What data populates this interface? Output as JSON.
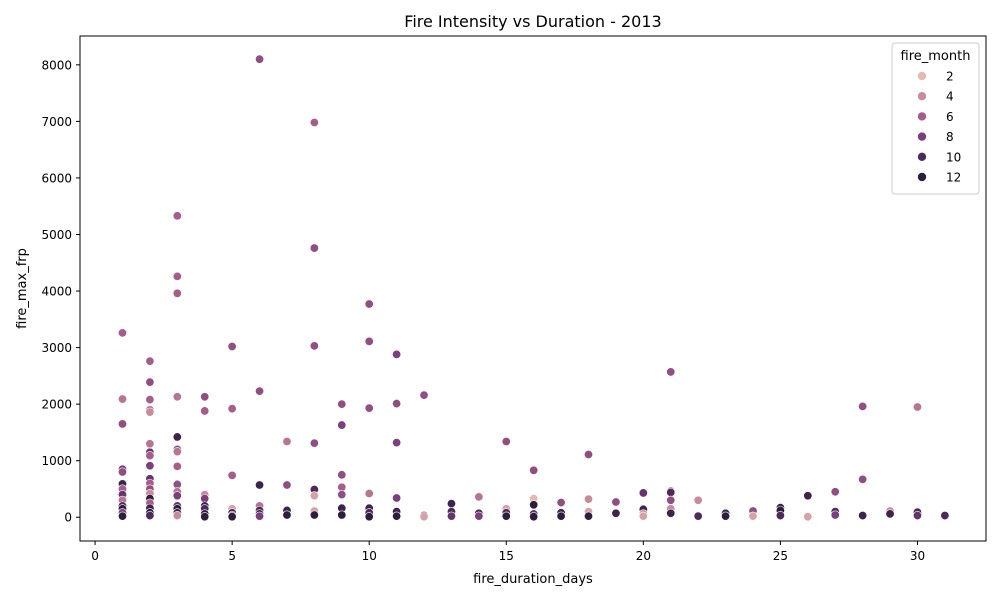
{
  "chart_data": {
    "type": "scatter",
    "title": "Fire Intensity vs Duration - 2013",
    "xlabel": "fire_duration_days",
    "ylabel": "fire_max_frp",
    "xlim": [
      -0.55,
      32.5
    ],
    "ylim": [
      -420,
      8510
    ],
    "xticks": [
      0,
      5,
      10,
      15,
      20,
      25,
      30
    ],
    "yticks": [
      0,
      1000,
      2000,
      3000,
      4000,
      5000,
      6000,
      7000,
      8000
    ],
    "grid": false,
    "legend": {
      "title": "fire_month",
      "placement": "top-right",
      "entries": [
        {
          "label": "2",
          "month": 2
        },
        {
          "label": "4",
          "month": 4
        },
        {
          "label": "6",
          "month": 6
        },
        {
          "label": "8",
          "month": 8
        },
        {
          "label": "10",
          "month": 10
        },
        {
          "label": "12",
          "month": 12
        }
      ]
    },
    "hue": {
      "field": "fire_month",
      "stops": [
        {
          "month": 1,
          "color": "#edd1cb"
        },
        {
          "month": 2,
          "color": "#e4b9b1"
        },
        {
          "month": 4,
          "color": "#c98b9c"
        },
        {
          "month": 6,
          "color": "#a55e8a"
        },
        {
          "month": 8,
          "color": "#7a3f7c"
        },
        {
          "month": 10,
          "color": "#4d2a5a"
        },
        {
          "month": 12,
          "color": "#2d1e3e"
        }
      ]
    },
    "points": [
      {
        "x": 1,
        "y": 3260,
        "m": 6
      },
      {
        "x": 1,
        "y": 2090,
        "m": 5
      },
      {
        "x": 1,
        "y": 1650,
        "m": 7
      },
      {
        "x": 1,
        "y": 850,
        "m": 8
      },
      {
        "x": 1,
        "y": 800,
        "m": 7
      },
      {
        "x": 1,
        "y": 590,
        "m": 11
      },
      {
        "x": 1,
        "y": 500,
        "m": 6
      },
      {
        "x": 1,
        "y": 400,
        "m": 9
      },
      {
        "x": 1,
        "y": 300,
        "m": 5
      },
      {
        "x": 1,
        "y": 200,
        "m": 10
      },
      {
        "x": 1,
        "y": 150,
        "m": 12
      },
      {
        "x": 1,
        "y": 80,
        "m": 8
      },
      {
        "x": 1,
        "y": 20,
        "m": 12
      },
      {
        "x": 2,
        "y": 2760,
        "m": 6
      },
      {
        "x": 2,
        "y": 2390,
        "m": 7
      },
      {
        "x": 2,
        "y": 2080,
        "m": 6
      },
      {
        "x": 2,
        "y": 1900,
        "m": 5
      },
      {
        "x": 2,
        "y": 1860,
        "m": 4
      },
      {
        "x": 2,
        "y": 1300,
        "m": 5
      },
      {
        "x": 2,
        "y": 1150,
        "m": 9
      },
      {
        "x": 2,
        "y": 1090,
        "m": 6
      },
      {
        "x": 2,
        "y": 910,
        "m": 8
      },
      {
        "x": 2,
        "y": 680,
        "m": 9
      },
      {
        "x": 2,
        "y": 600,
        "m": 6
      },
      {
        "x": 2,
        "y": 500,
        "m": 7
      },
      {
        "x": 2,
        "y": 420,
        "m": 4
      },
      {
        "x": 2,
        "y": 330,
        "m": 12
      },
      {
        "x": 2,
        "y": 250,
        "m": 6
      },
      {
        "x": 2,
        "y": 160,
        "m": 11
      },
      {
        "x": 2,
        "y": 80,
        "m": 12
      },
      {
        "x": 2,
        "y": 30,
        "m": 10
      },
      {
        "x": 3,
        "y": 5330,
        "m": 6
      },
      {
        "x": 3,
        "y": 4260,
        "m": 6
      },
      {
        "x": 3,
        "y": 3960,
        "m": 6
      },
      {
        "x": 3,
        "y": 2130,
        "m": 5
      },
      {
        "x": 3,
        "y": 1420,
        "m": 11
      },
      {
        "x": 3,
        "y": 1200,
        "m": 7
      },
      {
        "x": 3,
        "y": 1160,
        "m": 5
      },
      {
        "x": 3,
        "y": 900,
        "m": 6
      },
      {
        "x": 3,
        "y": 580,
        "m": 7
      },
      {
        "x": 3,
        "y": 450,
        "m": 5
      },
      {
        "x": 3,
        "y": 380,
        "m": 8
      },
      {
        "x": 3,
        "y": 200,
        "m": 9
      },
      {
        "x": 3,
        "y": 150,
        "m": 12
      },
      {
        "x": 3,
        "y": 80,
        "m": 11
      },
      {
        "x": 3,
        "y": 30,
        "m": 4
      },
      {
        "x": 4,
        "y": 2130,
        "m": 7
      },
      {
        "x": 4,
        "y": 1880,
        "m": 6
      },
      {
        "x": 4,
        "y": 400,
        "m": 4
      },
      {
        "x": 4,
        "y": 330,
        "m": 8
      },
      {
        "x": 4,
        "y": 200,
        "m": 11
      },
      {
        "x": 4,
        "y": 150,
        "m": 10
      },
      {
        "x": 4,
        "y": 60,
        "m": 12
      },
      {
        "x": 4,
        "y": 10,
        "m": 12
      },
      {
        "x": 5,
        "y": 3020,
        "m": 7
      },
      {
        "x": 5,
        "y": 1920,
        "m": 6
      },
      {
        "x": 5,
        "y": 740,
        "m": 6
      },
      {
        "x": 5,
        "y": 150,
        "m": 3
      },
      {
        "x": 5,
        "y": 80,
        "m": 10
      },
      {
        "x": 5,
        "y": 30,
        "m": 9
      },
      {
        "x": 5,
        "y": 10,
        "m": 12
      },
      {
        "x": 6,
        "y": 8100,
        "m": 7
      },
      {
        "x": 6,
        "y": 2230,
        "m": 7
      },
      {
        "x": 6,
        "y": 570,
        "m": 11
      },
      {
        "x": 6,
        "y": 200,
        "m": 5
      },
      {
        "x": 6,
        "y": 120,
        "m": 10
      },
      {
        "x": 6,
        "y": 60,
        "m": 12
      },
      {
        "x": 6,
        "y": 20,
        "m": 8
      },
      {
        "x": 7,
        "y": 1340,
        "m": 5
      },
      {
        "x": 7,
        "y": 570,
        "m": 7
      },
      {
        "x": 7,
        "y": 120,
        "m": 11
      },
      {
        "x": 7,
        "y": 40,
        "m": 12
      },
      {
        "x": 8,
        "y": 6980,
        "m": 6
      },
      {
        "x": 8,
        "y": 4760,
        "m": 7
      },
      {
        "x": 8,
        "y": 3030,
        "m": 7
      },
      {
        "x": 8,
        "y": 1310,
        "m": 7
      },
      {
        "x": 8,
        "y": 490,
        "m": 10
      },
      {
        "x": 8,
        "y": 380,
        "m": 3
      },
      {
        "x": 8,
        "y": 110,
        "m": 3
      },
      {
        "x": 8,
        "y": 40,
        "m": 12
      },
      {
        "x": 9,
        "y": 2000,
        "m": 7
      },
      {
        "x": 9,
        "y": 1630,
        "m": 8
      },
      {
        "x": 9,
        "y": 750,
        "m": 7
      },
      {
        "x": 9,
        "y": 530,
        "m": 6
      },
      {
        "x": 9,
        "y": 400,
        "m": 7
      },
      {
        "x": 9,
        "y": 160,
        "m": 11
      },
      {
        "x": 9,
        "y": 40,
        "m": 12
      },
      {
        "x": 10,
        "y": 3770,
        "m": 7
      },
      {
        "x": 10,
        "y": 3110,
        "m": 7
      },
      {
        "x": 10,
        "y": 1930,
        "m": 7
      },
      {
        "x": 10,
        "y": 420,
        "m": 5
      },
      {
        "x": 10,
        "y": 160,
        "m": 11
      },
      {
        "x": 10,
        "y": 80,
        "m": 10
      },
      {
        "x": 10,
        "y": 10,
        "m": 12
      },
      {
        "x": 11,
        "y": 2880,
        "m": 8
      },
      {
        "x": 11,
        "y": 2010,
        "m": 7
      },
      {
        "x": 11,
        "y": 1320,
        "m": 8
      },
      {
        "x": 11,
        "y": 340,
        "m": 8
      },
      {
        "x": 11,
        "y": 100,
        "m": 11
      },
      {
        "x": 11,
        "y": 20,
        "m": 12
      },
      {
        "x": 12,
        "y": 2160,
        "m": 7
      },
      {
        "x": 12,
        "y": 30,
        "m": 10
      },
      {
        "x": 12,
        "y": 10,
        "m": 3
      },
      {
        "x": 13,
        "y": 240,
        "m": 11
      },
      {
        "x": 13,
        "y": 100,
        "m": 10
      },
      {
        "x": 13,
        "y": 20,
        "m": 9
      },
      {
        "x": 14,
        "y": 360,
        "m": 5
      },
      {
        "x": 14,
        "y": 70,
        "m": 10
      },
      {
        "x": 14,
        "y": 20,
        "m": 8
      },
      {
        "x": 15,
        "y": 1340,
        "m": 7
      },
      {
        "x": 15,
        "y": 150,
        "m": 3
      },
      {
        "x": 15,
        "y": 80,
        "m": 10
      },
      {
        "x": 15,
        "y": 20,
        "m": 12
      },
      {
        "x": 16,
        "y": 830,
        "m": 7
      },
      {
        "x": 16,
        "y": 330,
        "m": 2
      },
      {
        "x": 16,
        "y": 220,
        "m": 12
      },
      {
        "x": 16,
        "y": 60,
        "m": 9
      },
      {
        "x": 16,
        "y": 10,
        "m": 12
      },
      {
        "x": 17,
        "y": 260,
        "m": 7
      },
      {
        "x": 17,
        "y": 80,
        "m": 11
      },
      {
        "x": 17,
        "y": 20,
        "m": 12
      },
      {
        "x": 18,
        "y": 1110,
        "m": 7
      },
      {
        "x": 18,
        "y": 320,
        "m": 4
      },
      {
        "x": 18,
        "y": 100,
        "m": 3
      },
      {
        "x": 18,
        "y": 20,
        "m": 12
      },
      {
        "x": 19,
        "y": 270,
        "m": 7
      },
      {
        "x": 19,
        "y": 70,
        "m": 11
      },
      {
        "x": 20,
        "y": 430,
        "m": 9
      },
      {
        "x": 20,
        "y": 140,
        "m": 11
      },
      {
        "x": 20,
        "y": 60,
        "m": 4
      },
      {
        "x": 20,
        "y": 20,
        "m": 3
      },
      {
        "x": 21,
        "y": 2570,
        "m": 7
      },
      {
        "x": 21,
        "y": 460,
        "m": 8
      },
      {
        "x": 21,
        "y": 440,
        "m": 10
      },
      {
        "x": 21,
        "y": 300,
        "m": 7
      },
      {
        "x": 21,
        "y": 150,
        "m": 4
      },
      {
        "x": 21,
        "y": 70,
        "m": 11
      },
      {
        "x": 22,
        "y": 300,
        "m": 4
      },
      {
        "x": 22,
        "y": 20,
        "m": 10
      },
      {
        "x": 23,
        "y": 70,
        "m": 11
      },
      {
        "x": 23,
        "y": 20,
        "m": 12
      },
      {
        "x": 24,
        "y": 110,
        "m": 7
      },
      {
        "x": 24,
        "y": 20,
        "m": 3
      },
      {
        "x": 25,
        "y": 170,
        "m": 11
      },
      {
        "x": 25,
        "y": 120,
        "m": 12
      },
      {
        "x": 25,
        "y": 30,
        "m": 10
      },
      {
        "x": 26,
        "y": 380,
        "m": 11
      },
      {
        "x": 26,
        "y": 10,
        "m": 3
      },
      {
        "x": 27,
        "y": 450,
        "m": 7
      },
      {
        "x": 27,
        "y": 100,
        "m": 10
      },
      {
        "x": 27,
        "y": 40,
        "m": 8
      },
      {
        "x": 28,
        "y": 1960,
        "m": 7
      },
      {
        "x": 28,
        "y": 670,
        "m": 7
      },
      {
        "x": 28,
        "y": 30,
        "m": 11
      },
      {
        "x": 29,
        "y": 110,
        "m": 4
      },
      {
        "x": 29,
        "y": 60,
        "m": 11
      },
      {
        "x": 30,
        "y": 1950,
        "m": 5
      },
      {
        "x": 30,
        "y": 90,
        "m": 10
      },
      {
        "x": 30,
        "y": 30,
        "m": 9
      },
      {
        "x": 31,
        "y": 30,
        "m": 10
      }
    ]
  }
}
